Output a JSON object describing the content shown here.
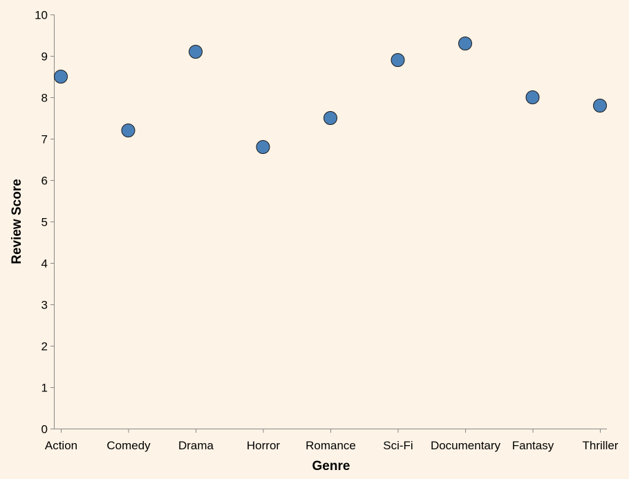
{
  "chart_data": {
    "type": "scatter",
    "categories": [
      "Action",
      "Comedy",
      "Drama",
      "Horror",
      "Romance",
      "Sci-Fi",
      "Documentary",
      "Fantasy",
      "Thriller"
    ],
    "values": [
      8.5,
      7.2,
      9.1,
      6.8,
      7.5,
      8.9,
      9.3,
      8.0,
      7.8
    ],
    "xlabel": "Genre",
    "ylabel": "Review Score",
    "ylim": [
      0,
      10
    ],
    "yticks": [
      0,
      1,
      2,
      3,
      4,
      5,
      6,
      7,
      8,
      9,
      10
    ],
    "grid": false,
    "colors": {
      "background": "#fdf3e6",
      "point_fill": "#4a80b8",
      "point_stroke": "#1a1a1a",
      "axis": "#888888"
    }
  }
}
